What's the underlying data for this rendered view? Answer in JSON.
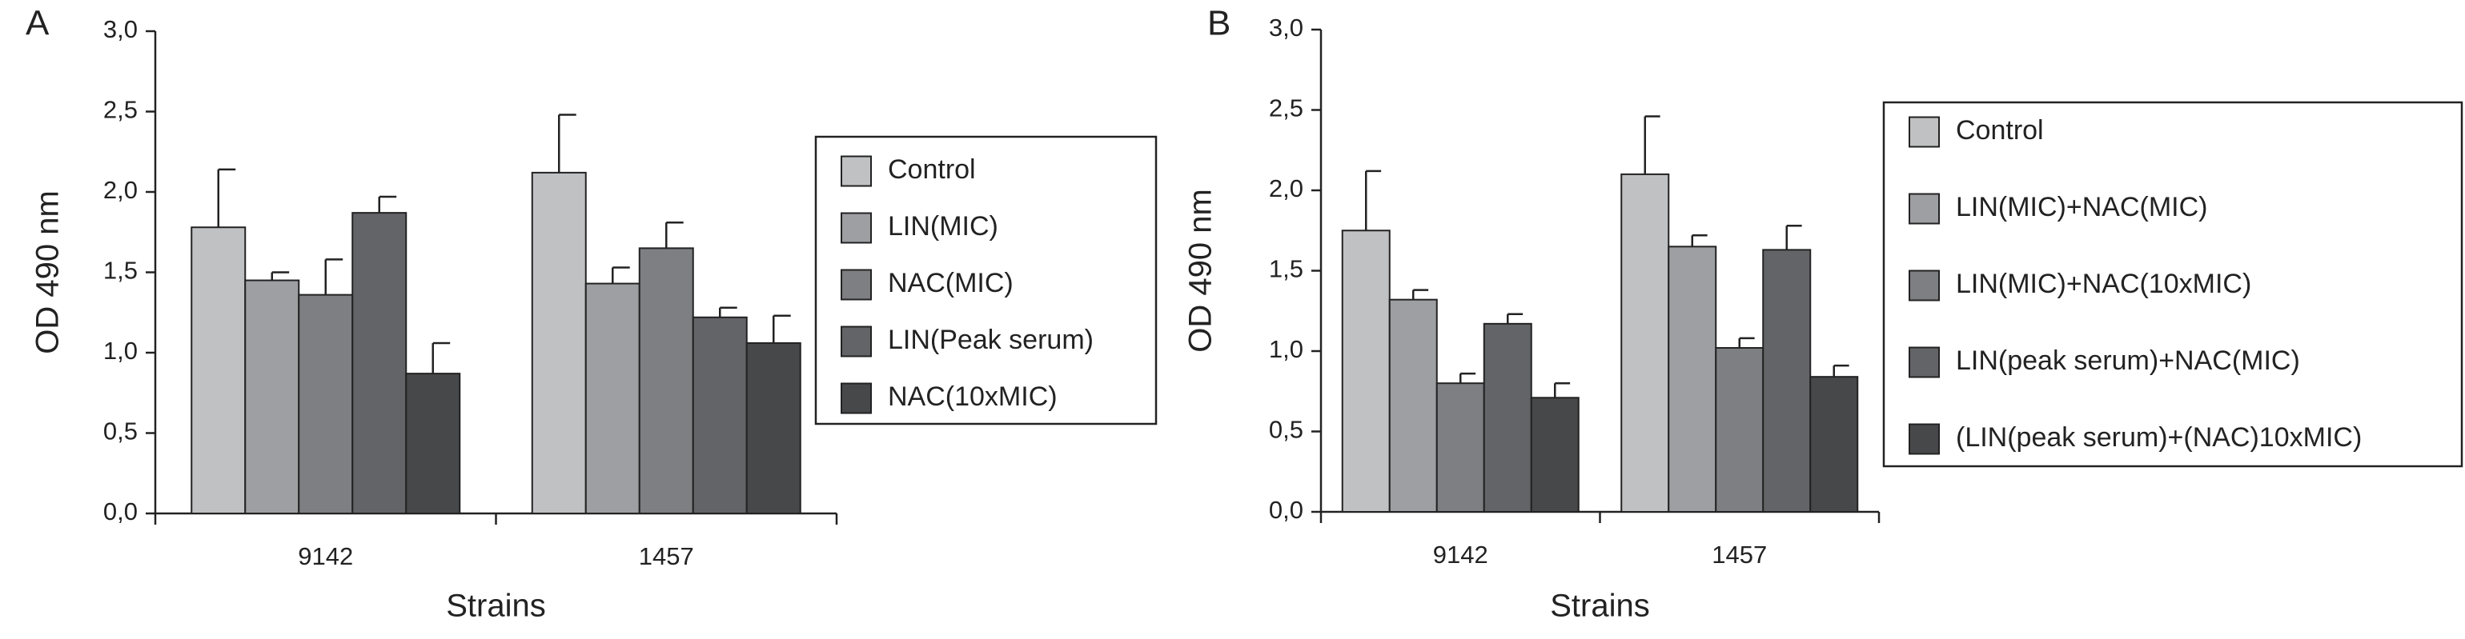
{
  "chart_data": [
    {
      "type": "bar",
      "panel_label": "A",
      "ylabel": "OD 490 nm",
      "xlabel": "Strains",
      "categories": [
        "9142",
        "1457"
      ],
      "ylim": [
        0,
        3
      ],
      "yticks": [
        {
          "value": 0,
          "label": "0,0"
        },
        {
          "value": 0.5,
          "label": "0,5"
        },
        {
          "value": 1,
          "label": "1,0"
        },
        {
          "value": 1.5,
          "label": "1,5"
        },
        {
          "value": 2,
          "label": "2,0"
        },
        {
          "value": 2.5,
          "label": "2,5"
        },
        {
          "value": 3,
          "label": "3,0"
        }
      ],
      "series": [
        {
          "name": "Control",
          "color": "#c0c1c3",
          "values": [
            1.78,
            2.12
          ],
          "errors": [
            0.36,
            0.36
          ]
        },
        {
          "name": "LIN(MIC)",
          "color": "#9d9fa2",
          "values": [
            1.45,
            1.43
          ],
          "errors": [
            0.05,
            0.1
          ]
        },
        {
          "name": "NAC(MIC)",
          "color": "#7d7f82",
          "values": [
            1.36,
            1.65
          ],
          "errors": [
            0.22,
            0.16
          ]
        },
        {
          "name": "LIN(Peak serum)",
          "color": "#636467",
          "values": [
            1.87,
            1.22
          ],
          "errors": [
            0.1,
            0.06
          ]
        },
        {
          "name": "NAC(10xMIC)",
          "color": "#47484a",
          "values": [
            0.87,
            1.06
          ],
          "errors": [
            0.19,
            0.17
          ]
        }
      ]
    },
    {
      "type": "bar",
      "panel_label": "B",
      "ylabel": "OD 490 nm",
      "xlabel": "Strains",
      "categories": [
        "9142",
        "1457"
      ],
      "ylim": [
        0,
        3
      ],
      "yticks": [
        {
          "value": 0,
          "label": "0,0"
        },
        {
          "value": 0.5,
          "label": "0,5"
        },
        {
          "value": 1,
          "label": "1,0"
        },
        {
          "value": 1.5,
          "label": "1,5"
        },
        {
          "value": 2,
          "label": "2,0"
        },
        {
          "value": 2.5,
          "label": "2,5"
        },
        {
          "value": 3,
          "label": "3,0"
        }
      ],
      "series": [
        {
          "name": "Control",
          "color": "#c0c1c3",
          "values": [
            1.75,
            2.1
          ],
          "errors": [
            0.37,
            0.36
          ]
        },
        {
          "name": "LIN(MIC)+NAC(MIC)",
          "color": "#9d9fa2",
          "values": [
            1.32,
            1.65
          ],
          "errors": [
            0.06,
            0.07
          ]
        },
        {
          "name": "LIN(MIC)+NAC(10xMIC)",
          "color": "#7d7f82",
          "values": [
            0.8,
            1.02
          ],
          "errors": [
            0.06,
            0.06
          ]
        },
        {
          "name": "LIN(peak serum)+NAC(MIC)",
          "color": "#636467",
          "values": [
            1.17,
            1.63
          ],
          "errors": [
            0.06,
            0.15
          ]
        },
        {
          "name": "(LIN(peak serum)+(NAC)10xMIC)",
          "color": "#47484a",
          "values": [
            0.71,
            0.84
          ],
          "errors": [
            0.09,
            0.07
          ]
        }
      ]
    }
  ]
}
